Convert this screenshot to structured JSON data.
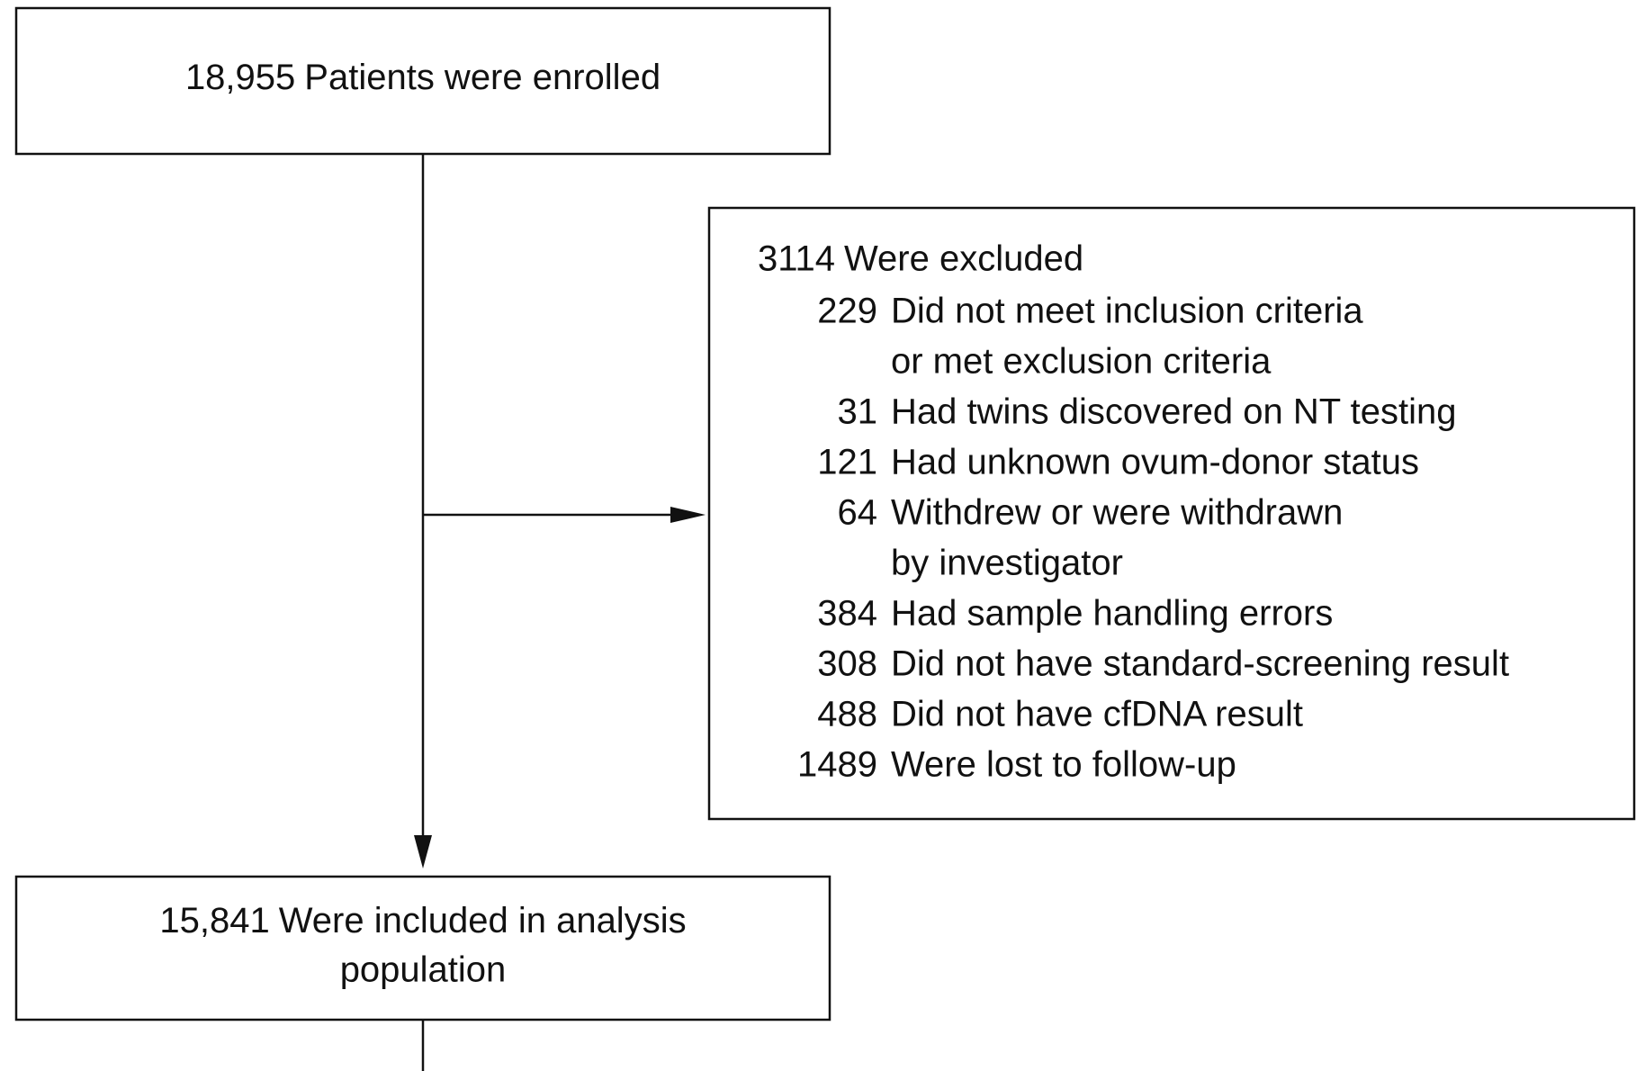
{
  "enrolled": {
    "count": "18,955",
    "label": "Patients were enrolled"
  },
  "excluded": {
    "count": 3114,
    "label": "Were excluded",
    "items": [
      {
        "count": 229,
        "lines": [
          "Did not meet inclusion criteria",
          "or met exclusion criteria"
        ]
      },
      {
        "count": 31,
        "lines": [
          "Had twins discovered on NT testing"
        ]
      },
      {
        "count": 121,
        "lines": [
          "Had unknown ovum-donor status"
        ]
      },
      {
        "count": 64,
        "lines": [
          "Withdrew or were withdrawn",
          "by investigator"
        ]
      },
      {
        "count": 384,
        "lines": [
          "Had sample handling errors"
        ]
      },
      {
        "count": 308,
        "lines": [
          "Did not have standard-screening result"
        ]
      },
      {
        "count": 488,
        "lines": [
          "Did not have cfDNA result"
        ]
      },
      {
        "count": 1489,
        "lines": [
          "Were lost to follow-up"
        ]
      }
    ]
  },
  "included": {
    "count": "15,841",
    "lines": [
      "Were included in analysis",
      "population"
    ]
  }
}
